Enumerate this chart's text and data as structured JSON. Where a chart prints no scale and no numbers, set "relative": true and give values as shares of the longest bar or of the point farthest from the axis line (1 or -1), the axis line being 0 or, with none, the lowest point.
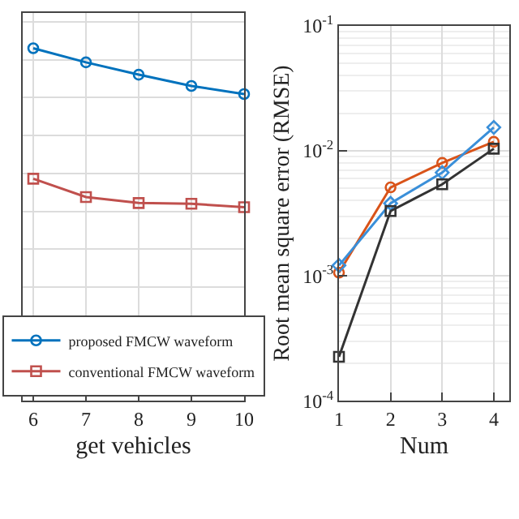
{
  "chart_data": [
    {
      "type": "line",
      "xlabel": "get vehicles",
      "relative": true,
      "x": [
        6,
        7,
        8,
        9,
        10
      ],
      "xlim": [
        5.8,
        10
      ],
      "xticks": [
        6,
        7,
        8,
        9,
        10
      ],
      "tick_labels": "x",
      "grid": true,
      "legend": "bottom",
      "series": [
        {
          "name": "proposed FMCW waveform",
          "color": "#0072bd",
          "marker": "circle",
          "values": [
            1,
            0.96,
            0.925,
            0.893,
            0.87
          ]
        },
        {
          "name": "conventional FMCW waveform",
          "color": "#c0504d",
          "marker": "square",
          "values": [
            0.63,
            0.578,
            0.561,
            0.559,
            0.549
          ]
        }
      ]
    },
    {
      "type": "line",
      "xlabel": "Num",
      "ylabel": "Root mean square error (RMSE)",
      "x": [
        1,
        2,
        3,
        4
      ],
      "xlim": [
        1,
        4.3
      ],
      "xticks": [
        1,
        2,
        3,
        4
      ],
      "log": "y",
      "ylim": [
        0.0001,
        0.1
      ],
      "yticks": [
        {
          "value": 0.0001,
          "label": "10$^{-4}$"
        },
        {
          "value": 0.001,
          "label": "10$^{-3}$"
        },
        {
          "value": 0.01,
          "label": "10$^{-2}$"
        },
        {
          "value": 0.1,
          "label": "10$^{-1}$"
        }
      ],
      "grid": true,
      "legend": false,
      "series": [
        {
          "color": "#d95319",
          "marker": "circle",
          "values": [
            0.00106,
            0.0051,
            0.008,
            0.0118
          ]
        },
        {
          "color": "#3a8fd9",
          "marker": "diamond",
          "values": [
            0.00121,
            0.0038,
            0.0067,
            0.0154
          ]
        },
        {
          "color": "#333333",
          "marker": "square",
          "values": [
            0.000225,
            0.0033,
            0.0054,
            0.0104
          ]
        }
      ]
    }
  ]
}
